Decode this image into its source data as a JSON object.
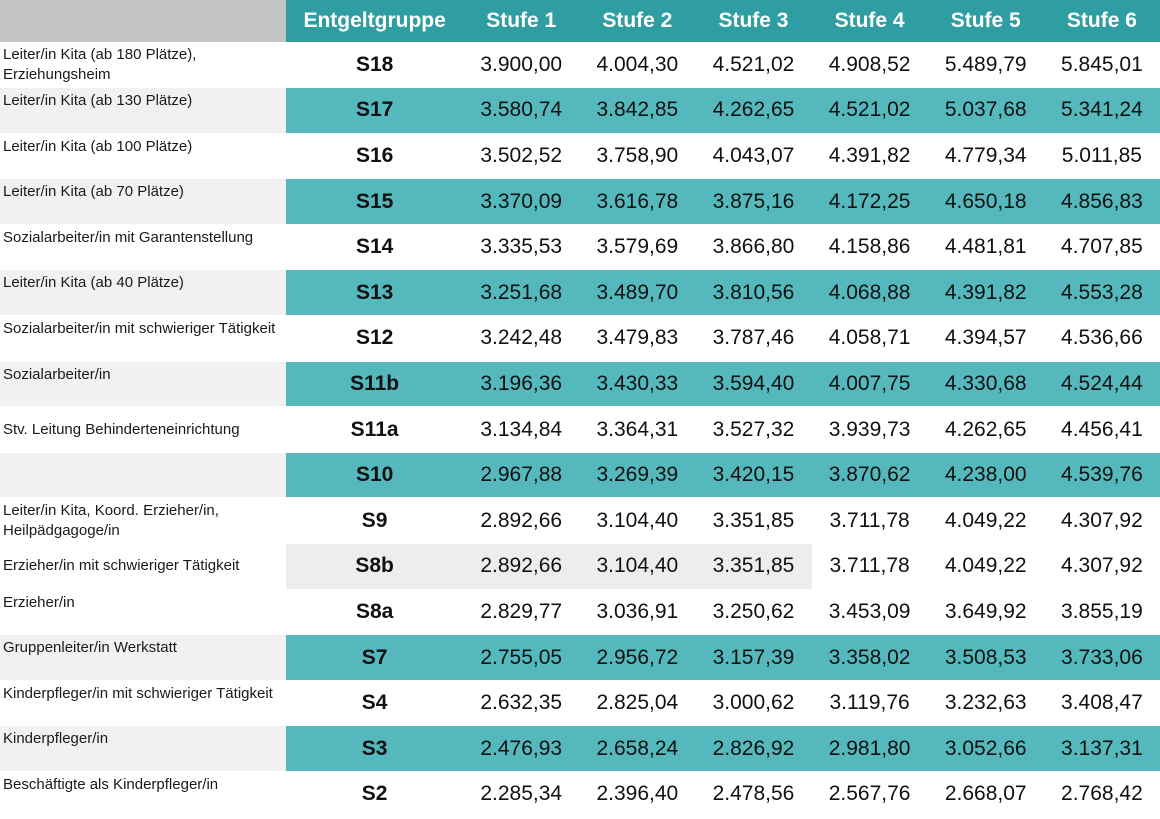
{
  "table": {
    "headers": {
      "group": "Entgeltgruppe",
      "stufen": [
        "Stufe 1",
        "Stufe 2",
        "Stufe 3",
        "Stufe 4",
        "Stufe 5",
        "Stufe 6"
      ]
    },
    "rows": [
      {
        "label": "Leiter/in Kita (ab 180 Plätze), Erziehungsheim",
        "group": "S18",
        "values": [
          "3.900,00",
          "4.004,30",
          "4.521,02",
          "4.908,52",
          "5.489,79",
          "5.845,01"
        ]
      },
      {
        "label": "Leiter/in Kita (ab 130 Plätze)",
        "group": "S17",
        "values": [
          "3.580,74",
          "3.842,85",
          "4.262,65",
          "4.521,02",
          "5.037,68",
          "5.341,24"
        ]
      },
      {
        "label": "Leiter/in Kita (ab 100 Plätze)",
        "group": "S16",
        "values": [
          "3.502,52",
          "3.758,90",
          "4.043,07",
          "4.391,82",
          "4.779,34",
          "5.011,85"
        ]
      },
      {
        "label": "Leiter/in Kita (ab 70 Plätze)",
        "group": "S15",
        "values": [
          "3.370,09",
          "3.616,78",
          "3.875,16",
          "4.172,25",
          "4.650,18",
          "4.856,83"
        ]
      },
      {
        "label": "Sozialarbeiter/in mit Garantenstellung",
        "group": "S14",
        "values": [
          "3.335,53",
          "3.579,69",
          "3.866,80",
          "4.158,86",
          "4.481,81",
          "4.707,85"
        ]
      },
      {
        "label": "Leiter/in Kita (ab 40 Plätze)",
        "group": "S13",
        "values": [
          "3.251,68",
          "3.489,70",
          "3.810,56",
          "4.068,88",
          "4.391,82",
          "4.553,28"
        ]
      },
      {
        "label": "Sozialarbeiter/in mit schwieriger Tätigkeit",
        "group": "S12",
        "values": [
          "3.242,48",
          "3.479,83",
          "3.787,46",
          "4.058,71",
          "4.394,57",
          "4.536,66"
        ]
      },
      {
        "label": "Sozialarbeiter/in",
        "group": "S11b",
        "values": [
          "3.196,36",
          "3.430,33",
          "3.594,40",
          "4.007,75",
          "4.330,68",
          "4.524,44"
        ]
      },
      {
        "label": "Stv. Leitung Behinderteneinrichtung",
        "group": "S11a",
        "values": [
          "3.134,84",
          "3.364,31",
          "3.527,32",
          "3.939,73",
          "4.262,65",
          "4.456,41"
        ]
      },
      {
        "label": "",
        "group": "S10",
        "values": [
          "2.967,88",
          "3.269,39",
          "3.420,15",
          "3.870,62",
          "4.238,00",
          "4.539,76"
        ]
      },
      {
        "label": "Leiter/in Kita, Koord. Erzieher/in, Heilpädgagoge/in",
        "group": "S9",
        "values": [
          "2.892,66",
          "3.104,40",
          "3.351,85",
          "3.711,78",
          "4.049,22",
          "4.307,92"
        ]
      },
      {
        "label": "Erzieher/in mit schwieriger Tätigkeit",
        "group": "S8b",
        "values": [
          "2.892,66",
          "3.104,40",
          "3.351,85",
          "3.711,78",
          "4.049,22",
          "4.307,92"
        ]
      },
      {
        "label": "Erzieher/in",
        "group": "S8a",
        "values": [
          "2.829,77",
          "3.036,91",
          "3.250,62",
          "3.453,09",
          "3.649,92",
          "3.855,19"
        ]
      },
      {
        "label": "Gruppenleiter/in Werkstatt",
        "group": "S7",
        "values": [
          "2.755,05",
          "2.956,72",
          "3.157,39",
          "3.358,02",
          "3.508,53",
          "3.733,06"
        ]
      },
      {
        "label": "Kinderpfleger/in mit schwieriger Tätigkeit",
        "group": "S4",
        "values": [
          "2.632,35",
          "2.825,04",
          "3.000,62",
          "3.119,76",
          "3.232,63",
          "3.408,47"
        ]
      },
      {
        "label": "Kinderpfleger/in",
        "group": "S3",
        "values": [
          "2.476,93",
          "2.658,24",
          "2.826,92",
          "2.981,80",
          "3.052,66",
          "3.137,31"
        ]
      },
      {
        "label": "Beschäftigte als Kinderpfleger/in",
        "group": "S2",
        "values": [
          "2.285,34",
          "2.396,40",
          "2.478,56",
          "2.567,76",
          "2.668,07",
          "2.768,42"
        ]
      }
    ]
  },
  "colors": {
    "header_teal": "#2f9ea3",
    "row_teal": "#55b8bd",
    "corner_gray": "#c4c4c4",
    "label_alt_gray": "#f1f1f1"
  }
}
